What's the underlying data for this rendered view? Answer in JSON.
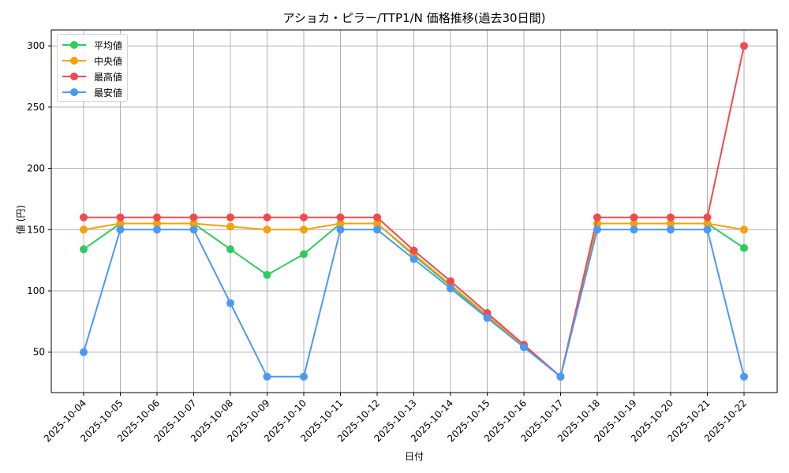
{
  "chart_data": {
    "type": "line",
    "title": "アショカ・ピラー/TTP1/N 価格推移(過去30日間)",
    "xlabel": "日付",
    "ylabel": "値 (円)",
    "ylim": [
      17,
      313
    ],
    "yticks": [
      50,
      100,
      150,
      200,
      250,
      300
    ],
    "grid": true,
    "legend_position": "upper left",
    "categories": [
      "2025-10-04",
      "2025-10-05",
      "2025-10-06",
      "2025-10-07",
      "2025-10-08",
      "2025-10-09",
      "2025-10-10",
      "2025-10-11",
      "2025-10-12",
      "2025-10-13",
      "2025-10-14",
      "2025-10-15",
      "2025-10-16",
      "2025-10-17",
      "2025-10-18",
      "2025-10-19",
      "2025-10-20",
      "2025-10-21",
      "2025-10-22"
    ],
    "series": [
      {
        "name": "平均値",
        "color": "#2ecc60",
        "values": [
          134,
          155,
          155,
          155,
          134,
          113,
          130,
          155,
          155,
          129,
          104,
          79,
          55,
          30,
          155,
          155,
          155,
          155,
          135
        ]
      },
      {
        "name": "中央値",
        "color": "#f5a20a",
        "values": [
          150,
          155,
          155,
          155,
          152.5,
          150,
          150,
          155,
          155,
          130,
          105,
          80,
          55,
          30,
          155,
          155,
          155,
          155,
          150
        ]
      },
      {
        "name": "最高値",
        "color": "#f04a4f",
        "values": [
          160,
          160,
          160,
          160,
          160,
          160,
          160,
          160,
          160,
          133,
          108,
          82,
          56,
          30,
          160,
          160,
          160,
          160,
          300
        ]
      },
      {
        "name": "最安値",
        "color": "#4a9af5",
        "values": [
          50,
          150,
          150,
          150,
          90,
          30,
          30,
          150,
          150,
          126,
          102,
          78,
          54,
          30,
          150,
          150,
          150,
          150,
          30
        ]
      }
    ]
  }
}
